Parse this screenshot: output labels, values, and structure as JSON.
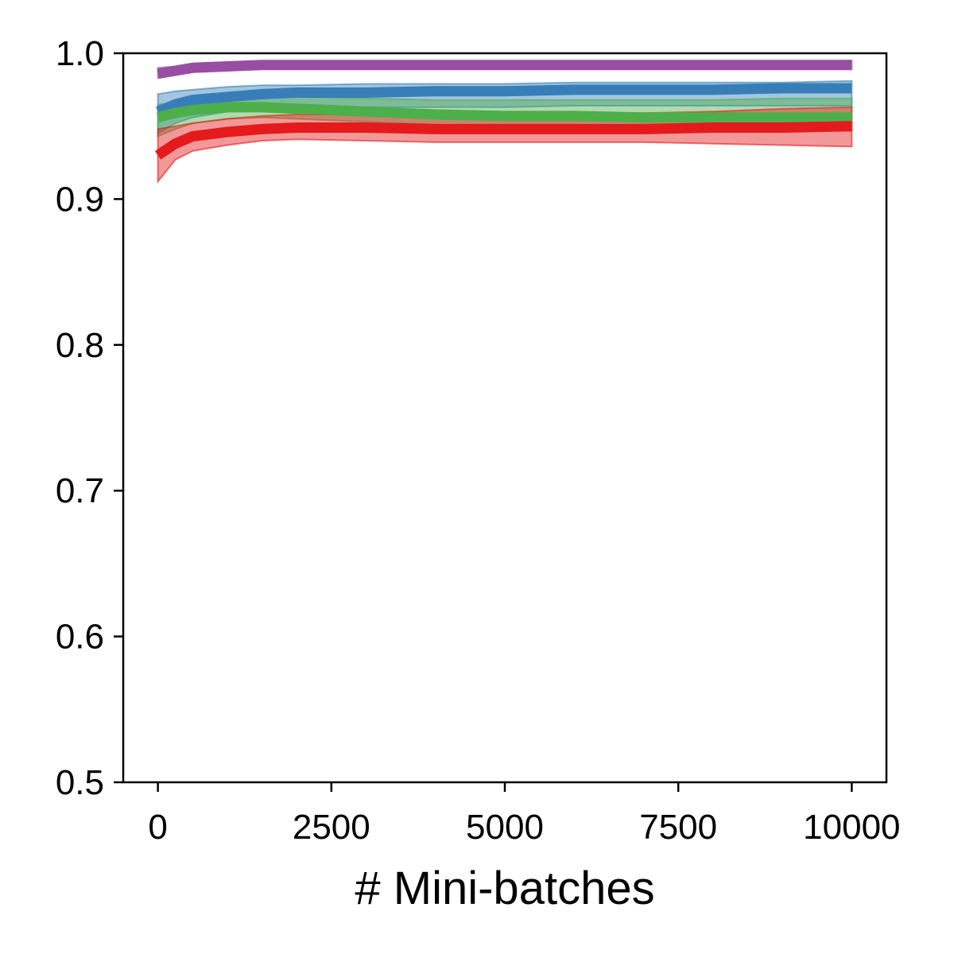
{
  "chart_data": {
    "type": "line",
    "title": "",
    "xlabel": "# Mini-batches",
    "ylabel": "",
    "xlim": [
      -500,
      10500
    ],
    "ylim": [
      0.5,
      1.0
    ],
    "xticks": [
      0,
      2500,
      5000,
      7500,
      10000
    ],
    "xtick_labels": [
      "0",
      "2500",
      "5000",
      "7500",
      "10000"
    ],
    "yticks": [
      0.5,
      0.6,
      0.7,
      0.8,
      0.9,
      1.0
    ],
    "ytick_labels": [
      "0.5",
      "0.6",
      "0.7",
      "0.8",
      "0.9",
      "1.0"
    ],
    "grid": false,
    "legend": "none",
    "x": [
      0,
      250,
      500,
      1000,
      1500,
      2000,
      3000,
      4000,
      5000,
      6000,
      7000,
      8000,
      9000,
      10000
    ],
    "series": [
      {
        "color": "#984ea3",
        "values": [
          0.986,
          0.988,
          0.99,
          0.991,
          0.992,
          0.992,
          0.992,
          0.992,
          0.992,
          0.992,
          0.992,
          0.992,
          0.992,
          0.992
        ],
        "lower": [
          0.983,
          0.986,
          0.988,
          0.989,
          0.99,
          0.99,
          0.99,
          0.99,
          0.99,
          0.99,
          0.99,
          0.99,
          0.99,
          0.989
        ],
        "upper": [
          0.99,
          0.991,
          0.992,
          0.993,
          0.994,
          0.994,
          0.994,
          0.994,
          0.994,
          0.994,
          0.994,
          0.994,
          0.994,
          0.995
        ]
      },
      {
        "color": "#377eb8",
        "values": [
          0.96,
          0.965,
          0.968,
          0.97,
          0.972,
          0.973,
          0.973,
          0.974,
          0.974,
          0.975,
          0.975,
          0.975,
          0.976,
          0.976
        ],
        "lower": [
          0.945,
          0.952,
          0.956,
          0.96,
          0.962,
          0.963,
          0.963,
          0.963,
          0.963,
          0.964,
          0.964,
          0.964,
          0.964,
          0.964
        ],
        "upper": [
          0.972,
          0.974,
          0.975,
          0.977,
          0.978,
          0.978,
          0.979,
          0.979,
          0.979,
          0.98,
          0.98,
          0.98,
          0.98,
          0.981
        ]
      },
      {
        "color": "#4daf4a",
        "values": [
          0.956,
          0.959,
          0.961,
          0.963,
          0.963,
          0.962,
          0.96,
          0.958,
          0.957,
          0.957,
          0.956,
          0.956,
          0.956,
          0.956
        ],
        "lower": [
          0.943,
          0.948,
          0.952,
          0.955,
          0.956,
          0.955,
          0.953,
          0.951,
          0.95,
          0.95,
          0.949,
          0.948,
          0.947,
          0.947
        ],
        "upper": [
          0.965,
          0.966,
          0.968,
          0.969,
          0.97,
          0.97,
          0.969,
          0.968,
          0.968,
          0.968,
          0.968,
          0.968,
          0.969,
          0.969
        ]
      },
      {
        "color": "#e41a1c",
        "values": [
          0.93,
          0.938,
          0.943,
          0.946,
          0.948,
          0.949,
          0.949,
          0.948,
          0.948,
          0.948,
          0.948,
          0.949,
          0.949,
          0.95
        ],
        "lower": [
          0.912,
          0.927,
          0.933,
          0.937,
          0.94,
          0.941,
          0.94,
          0.939,
          0.939,
          0.939,
          0.939,
          0.938,
          0.937,
          0.936
        ],
        "upper": [
          0.948,
          0.95,
          0.952,
          0.955,
          0.957,
          0.958,
          0.958,
          0.958,
          0.958,
          0.958,
          0.959,
          0.96,
          0.962,
          0.963
        ]
      }
    ]
  }
}
